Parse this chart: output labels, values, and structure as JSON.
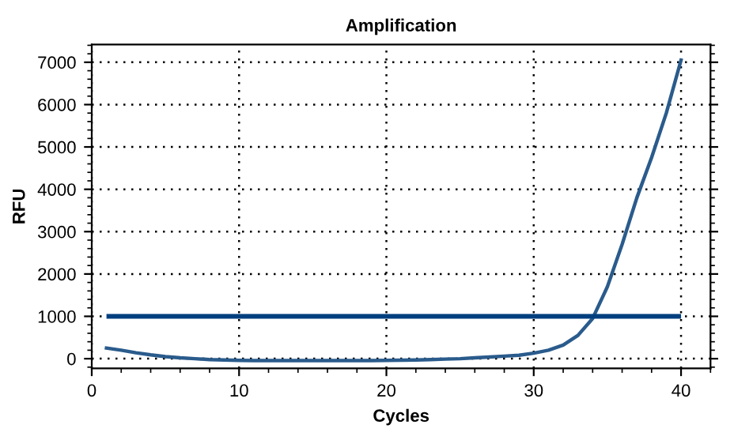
{
  "chart_data": {
    "type": "line",
    "title": "Amplification",
    "xlabel": "Cycles",
    "ylabel": "RFU",
    "x": [
      1,
      2,
      3,
      4,
      5,
      6,
      7,
      8,
      9,
      10,
      11,
      12,
      13,
      14,
      15,
      16,
      17,
      18,
      19,
      20,
      21,
      22,
      23,
      24,
      25,
      26,
      27,
      28,
      29,
      30,
      31,
      32,
      33,
      34,
      35,
      36,
      37,
      38,
      39,
      40
    ],
    "series": [
      {
        "color": "#2a5b8c",
        "values": [
          250,
          200,
          140,
          90,
          50,
          20,
          0,
          -20,
          -30,
          -40,
          -45,
          -45,
          -45,
          -45,
          -45,
          -45,
          -45,
          -45,
          -45,
          -40,
          -35,
          -30,
          -20,
          -10,
          0,
          20,
          40,
          60,
          80,
          130,
          200,
          320,
          550,
          950,
          1700,
          2700,
          3800,
          4750,
          5800,
          7050
        ]
      }
    ],
    "xlim": [
      0,
      42
    ],
    "xticks": [
      0,
      10,
      20,
      30,
      40
    ],
    "ylim": [
      -230,
      7420
    ],
    "yticks": [
      0,
      1000,
      2000,
      3000,
      4000,
      5000,
      6000,
      7000
    ],
    "grid": true,
    "line_style": "solid",
    "marker": "none",
    "ref_lines": [
      {
        "axis": "y",
        "value": 1000,
        "color": "#003f7f",
        "line_style": "solid"
      }
    ]
  }
}
